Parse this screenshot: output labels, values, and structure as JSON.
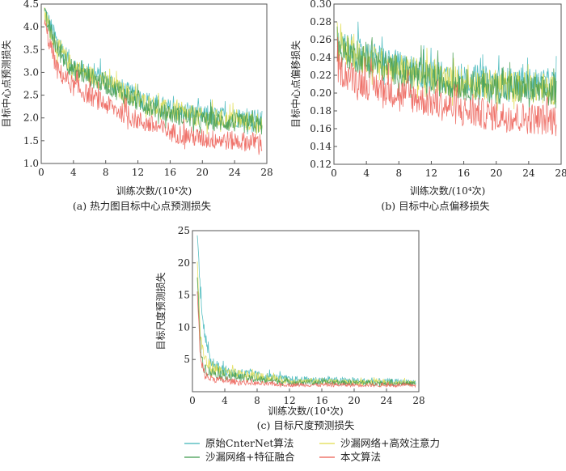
{
  "colors": {
    "original": "#3db5b8",
    "hourglass_attention": "#e0dc4a",
    "hourglass_fusion": "#3f9a4c",
    "ours": "#ec5c52"
  },
  "legend": [
    {
      "key": "original",
      "label": "原始CnterNet算法"
    },
    {
      "key": "hourglass_attention",
      "label": "沙漏网络+高效注意力"
    },
    {
      "key": "hourglass_fusion",
      "label": "沙漏网络+特征融合"
    },
    {
      "key": "ours",
      "label": "本文算法"
    }
  ],
  "chart_data": [
    {
      "type": "line",
      "caption": "(a) 热力图目标中心点预测损失",
      "xlabel": "训练次数/(10⁴次)",
      "ylabel": "目标中心点预测损失",
      "xlim": [
        0,
        28
      ],
      "ylim": [
        1.0,
        4.5
      ],
      "xticks": [
        "0",
        "4",
        "8",
        "12",
        "16",
        "20",
        "24",
        "28"
      ],
      "yticks": [
        "1.0",
        "1.5",
        "2.0",
        "2.5",
        "3.0",
        "3.5",
        "4.0",
        "4.5"
      ],
      "x": [
        0.4,
        2,
        4,
        8,
        12,
        16,
        20,
        24,
        27.4
      ],
      "noise": 0.22,
      "series": [
        {
          "key": "original",
          "values": [
            4.3,
            3.6,
            3.1,
            2.8,
            2.4,
            2.15,
            2.0,
            1.97,
            1.92
          ]
        },
        {
          "key": "hourglass_attention",
          "values": [
            4.2,
            3.5,
            3.05,
            2.75,
            2.35,
            2.1,
            1.96,
            1.9,
            1.86
          ]
        },
        {
          "key": "hourglass_fusion",
          "values": [
            4.2,
            3.45,
            3.0,
            2.7,
            2.3,
            2.05,
            1.9,
            1.85,
            1.8
          ]
        },
        {
          "key": "ours",
          "values": [
            4.0,
            3.0,
            2.65,
            2.25,
            1.9,
            1.65,
            1.5,
            1.45,
            1.42
          ]
        }
      ]
    },
    {
      "type": "line",
      "caption": "(b) 目标中心点偏移损失",
      "xlabel": "训练次数/(10⁴次)",
      "ylabel": "目标中心点偏移损失",
      "xlim": [
        0,
        28
      ],
      "ylim": [
        0.12,
        0.3
      ],
      "xticks": [
        "0",
        "4",
        "8",
        "12",
        "16",
        "20",
        "24",
        "28"
      ],
      "yticks": [
        "0.12",
        "0.14",
        "0.16",
        "0.18",
        "0.20",
        "0.22",
        "0.24",
        "0.26",
        "0.28",
        "0.30"
      ],
      "x": [
        0.4,
        2,
        4,
        8,
        12,
        16,
        20,
        24,
        27.4
      ],
      "noise": 0.018,
      "series": [
        {
          "key": "original",
          "values": [
            0.25,
            0.245,
            0.238,
            0.226,
            0.217,
            0.212,
            0.208,
            0.207,
            0.206
          ]
        },
        {
          "key": "hourglass_attention",
          "values": [
            0.25,
            0.243,
            0.235,
            0.224,
            0.214,
            0.208,
            0.205,
            0.203,
            0.2
          ]
        },
        {
          "key": "hourglass_fusion",
          "values": [
            0.245,
            0.24,
            0.232,
            0.222,
            0.212,
            0.206,
            0.202,
            0.2,
            0.196
          ]
        },
        {
          "key": "ours",
          "values": [
            0.225,
            0.215,
            0.207,
            0.196,
            0.186,
            0.176,
            0.171,
            0.168,
            0.166
          ]
        }
      ]
    },
    {
      "type": "line",
      "caption": "(c) 目标尺度预测损失",
      "xlabel": "训练次数/(10⁴次)",
      "ylabel": "目标尺度预测损失",
      "xlim": [
        0,
        28
      ],
      "ylim": [
        0,
        25
      ],
      "xticks": [
        "0",
        "4",
        "8",
        "12",
        "16",
        "20",
        "24",
        "28"
      ],
      "yticks": [
        "5",
        "10",
        "15",
        "20",
        "25"
      ],
      "x": [
        0.6,
        1,
        1.5,
        2,
        4,
        8,
        12,
        20,
        27.6
      ],
      "noise": 0.6,
      "series": [
        {
          "key": "original",
          "values": [
            24,
            15,
            9,
            5,
            3,
            2.4,
            1.8,
            1.6,
            1.4
          ]
        },
        {
          "key": "hourglass_attention",
          "values": [
            20,
            8,
            5,
            3.8,
            2.8,
            2.2,
            1.6,
            1.4,
            1.3
          ]
        },
        {
          "key": "hourglass_fusion",
          "values": [
            19,
            6,
            3.5,
            3,
            2.4,
            1.8,
            1.4,
            1.3,
            1.2
          ]
        },
        {
          "key": "ours",
          "values": [
            15,
            4.5,
            2.5,
            2,
            1.6,
            1.2,
            1.0,
            1.0,
            0.95
          ]
        }
      ]
    }
  ]
}
